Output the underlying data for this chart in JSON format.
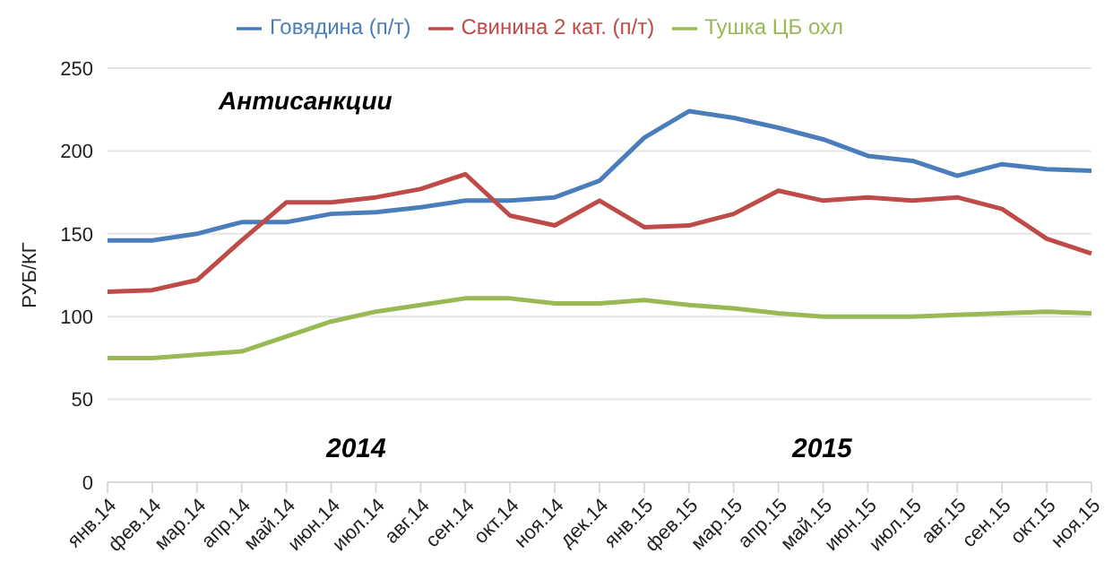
{
  "chart_data": {
    "type": "line",
    "ylabel": "РУБ/КГ",
    "categories": [
      "янв.14",
      "фев.14",
      "мар.14",
      "апр.14",
      "май.14",
      "июн.14",
      "июл.14",
      "авг.14",
      "сен.14",
      "окт.14",
      "ноя.14",
      "дек.14",
      "янв.15",
      "фев.15",
      "мар.15",
      "апр.15",
      "май.15",
      "июн.15",
      "июл.15",
      "авг.15",
      "сен.15",
      "окт.15",
      "ноя.15"
    ],
    "series": [
      {
        "name": "Говядина (п/т)",
        "color": "#4a7ebb",
        "values": [
          146,
          146,
          150,
          157,
          157,
          162,
          163,
          166,
          170,
          170,
          172,
          182,
          208,
          224,
          220,
          214,
          207,
          197,
          194,
          185,
          192,
          189,
          188
        ]
      },
      {
        "name": "Свинина 2 кат. (п/т)",
        "color": "#be4b48",
        "values": [
          115,
          116,
          122,
          146,
          169,
          169,
          172,
          177,
          186,
          161,
          155,
          170,
          154,
          155,
          162,
          176,
          170,
          172,
          170,
          172,
          165,
          147,
          138
        ]
      },
      {
        "name": "Тушка ЦБ охл",
        "color": "#98b954",
        "values": [
          75,
          75,
          77,
          79,
          88,
          97,
          103,
          107,
          111,
          111,
          108,
          108,
          110,
          107,
          105,
          102,
          100,
          100,
          100,
          101,
          102,
          103,
          102
        ]
      }
    ],
    "ylim": [
      0,
      250
    ],
    "yticks": [
      0,
      50,
      100,
      150,
      200,
      250
    ],
    "grid": "y",
    "legend": "top",
    "marker": "none",
    "line_style": "solid",
    "annotations": [
      "Антисанкции",
      "2014",
      "2015"
    ]
  }
}
